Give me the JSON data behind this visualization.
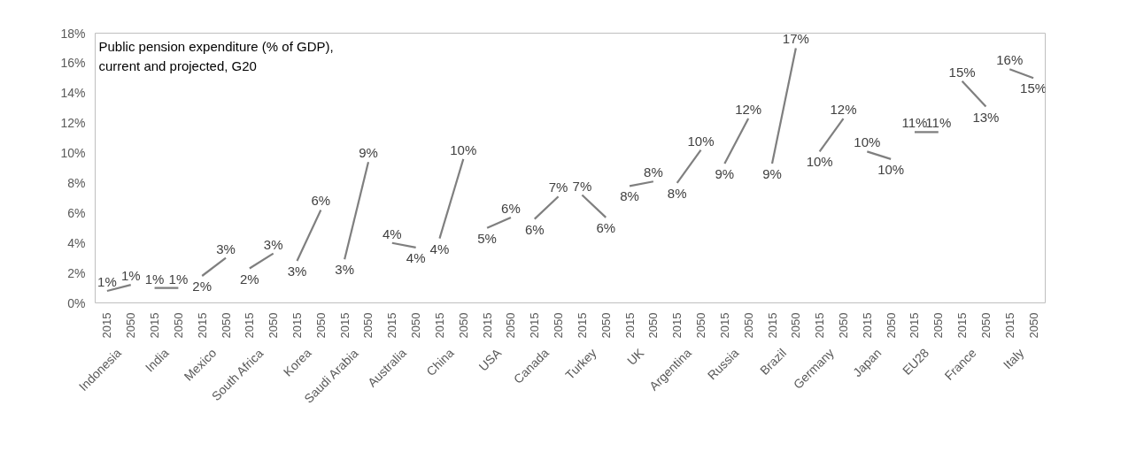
{
  "chart_data": {
    "type": "line",
    "title": "Public pension expenditure (% of GDP),\ncurrent and projected, G20",
    "categories": [
      "2015",
      "2050",
      "2015",
      "2050",
      "2015",
      "2050",
      "2015",
      "2050",
      "2015",
      "2050",
      "2015",
      "2050",
      "2015",
      "2050",
      "2015",
      "2050",
      "2015",
      "2050",
      "2015",
      "2050",
      "2015",
      "2050",
      "2015",
      "2050",
      "2015",
      "2050",
      "2015",
      "2050",
      "2015",
      "2050",
      "2015",
      "2050",
      "2015",
      "2050",
      "2015",
      "2050",
      "2015",
      "2050",
      "2015",
      "2050"
    ],
    "annotations": [
      "Indonesia",
      "India",
      "Mexico",
      "South Africa",
      "Korea",
      "Saudi Arabia",
      "Australia",
      "China",
      "USA",
      "Canada",
      "Turkey",
      "UK",
      "Argentina",
      "Russia",
      "Brazil",
      "Germany",
      "Japan",
      "EU28",
      "France",
      "Italy"
    ],
    "ylim": [
      0,
      18
    ],
    "yticks": [
      {
        "value": 0,
        "label": "0%"
      },
      {
        "value": 2,
        "label": "2%"
      },
      {
        "value": 4,
        "label": "4%"
      },
      {
        "value": 6,
        "label": "6%"
      },
      {
        "value": 8,
        "label": "8%"
      },
      {
        "value": 10,
        "label": "10%"
      },
      {
        "value": 12,
        "label": "12%"
      },
      {
        "value": 14,
        "label": "14%"
      },
      {
        "value": 16,
        "label": "16%"
      },
      {
        "value": 18,
        "label": "18%"
      }
    ],
    "series": [
      {
        "color": "#7f7f7f",
        "values": [
          0.8,
          1.2,
          null,
          null,
          null,
          null,
          null,
          null,
          null,
          null,
          null,
          null,
          null,
          null,
          null,
          null,
          null,
          null,
          null,
          null,
          null,
          null,
          null,
          null,
          null,
          null,
          null,
          null,
          null,
          null,
          null,
          null,
          null,
          null,
          null,
          null,
          null,
          null,
          null,
          null
        ],
        "value_labels": [
          "1%",
          "1%",
          null,
          null,
          null,
          null,
          null,
          null,
          null,
          null,
          null,
          null,
          null,
          null,
          null,
          null,
          null,
          null,
          null,
          null,
          null,
          null,
          null,
          null,
          null,
          null,
          null,
          null,
          null,
          null,
          null,
          null,
          null,
          null,
          null,
          null,
          null,
          null,
          null,
          null
        ]
      },
      {
        "color": "#7f7f7f",
        "values": [
          null,
          null,
          1.0,
          1.0,
          null,
          null,
          null,
          null,
          null,
          null,
          null,
          null,
          null,
          null,
          null,
          null,
          null,
          null,
          null,
          null,
          null,
          null,
          null,
          null,
          null,
          null,
          null,
          null,
          null,
          null,
          null,
          null,
          null,
          null,
          null,
          null,
          null,
          null,
          null,
          null
        ],
        "value_labels": [
          null,
          null,
          "1%",
          "1%",
          null,
          null,
          null,
          null,
          null,
          null,
          null,
          null,
          null,
          null,
          null,
          null,
          null,
          null,
          null,
          null,
          null,
          null,
          null,
          null,
          null,
          null,
          null,
          null,
          null,
          null,
          null,
          null,
          null,
          null,
          null,
          null,
          null,
          null,
          null,
          null
        ]
      },
      {
        "color": "#7f7f7f",
        "values": [
          null,
          null,
          null,
          null,
          1.8,
          3.0,
          null,
          null,
          null,
          null,
          null,
          null,
          null,
          null,
          null,
          null,
          null,
          null,
          null,
          null,
          null,
          null,
          null,
          null,
          null,
          null,
          null,
          null,
          null,
          null,
          null,
          null,
          null,
          null,
          null,
          null,
          null,
          null,
          null,
          null
        ],
        "value_labels": [
          null,
          null,
          null,
          null,
          "2%",
          "3%",
          null,
          null,
          null,
          null,
          null,
          null,
          null,
          null,
          null,
          null,
          null,
          null,
          null,
          null,
          null,
          null,
          null,
          null,
          null,
          null,
          null,
          null,
          null,
          null,
          null,
          null,
          null,
          null,
          null,
          null,
          null,
          null,
          null,
          null
        ]
      },
      {
        "color": "#7f7f7f",
        "values": [
          null,
          null,
          null,
          null,
          null,
          null,
          2.3,
          3.3,
          null,
          null,
          null,
          null,
          null,
          null,
          null,
          null,
          null,
          null,
          null,
          null,
          null,
          null,
          null,
          null,
          null,
          null,
          null,
          null,
          null,
          null,
          null,
          null,
          null,
          null,
          null,
          null,
          null,
          null,
          null,
          null
        ],
        "value_labels": [
          null,
          null,
          null,
          null,
          null,
          null,
          "2%",
          "3%",
          null,
          null,
          null,
          null,
          null,
          null,
          null,
          null,
          null,
          null,
          null,
          null,
          null,
          null,
          null,
          null,
          null,
          null,
          null,
          null,
          null,
          null,
          null,
          null,
          null,
          null,
          null,
          null,
          null,
          null,
          null,
          null
        ]
      },
      {
        "color": "#7f7f7f",
        "values": [
          null,
          null,
          null,
          null,
          null,
          null,
          null,
          null,
          2.8,
          6.2,
          null,
          null,
          null,
          null,
          null,
          null,
          null,
          null,
          null,
          null,
          null,
          null,
          null,
          null,
          null,
          null,
          null,
          null,
          null,
          null,
          null,
          null,
          null,
          null,
          null,
          null,
          null,
          null,
          null,
          null
        ],
        "value_labels": [
          null,
          null,
          null,
          null,
          null,
          null,
          null,
          null,
          "3%",
          "6%",
          null,
          null,
          null,
          null,
          null,
          null,
          null,
          null,
          null,
          null,
          null,
          null,
          null,
          null,
          null,
          null,
          null,
          null,
          null,
          null,
          null,
          null,
          null,
          null,
          null,
          null,
          null,
          null,
          null,
          null
        ]
      },
      {
        "color": "#7f7f7f",
        "values": [
          null,
          null,
          null,
          null,
          null,
          null,
          null,
          null,
          null,
          null,
          2.9,
          9.4,
          null,
          null,
          null,
          null,
          null,
          null,
          null,
          null,
          null,
          null,
          null,
          null,
          null,
          null,
          null,
          null,
          null,
          null,
          null,
          null,
          null,
          null,
          null,
          null,
          null,
          null,
          null,
          null
        ],
        "value_labels": [
          null,
          null,
          null,
          null,
          null,
          null,
          null,
          null,
          null,
          null,
          "3%",
          "9%",
          null,
          null,
          null,
          null,
          null,
          null,
          null,
          null,
          null,
          null,
          null,
          null,
          null,
          null,
          null,
          null,
          null,
          null,
          null,
          null,
          null,
          null,
          null,
          null,
          null,
          null,
          null,
          null
        ]
      },
      {
        "color": "#7f7f7f",
        "values": [
          null,
          null,
          null,
          null,
          null,
          null,
          null,
          null,
          null,
          null,
          null,
          null,
          4.0,
          3.7,
          null,
          null,
          null,
          null,
          null,
          null,
          null,
          null,
          null,
          null,
          null,
          null,
          null,
          null,
          null,
          null,
          null,
          null,
          null,
          null,
          null,
          null,
          null,
          null,
          null,
          null
        ],
        "value_labels": [
          null,
          null,
          null,
          null,
          null,
          null,
          null,
          null,
          null,
          null,
          null,
          null,
          "4%",
          "4%",
          null,
          null,
          null,
          null,
          null,
          null,
          null,
          null,
          null,
          null,
          null,
          null,
          null,
          null,
          null,
          null,
          null,
          null,
          null,
          null,
          null,
          null,
          null,
          null,
          null,
          null
        ]
      },
      {
        "color": "#7f7f7f",
        "values": [
          null,
          null,
          null,
          null,
          null,
          null,
          null,
          null,
          null,
          null,
          null,
          null,
          null,
          null,
          4.3,
          9.6,
          null,
          null,
          null,
          null,
          null,
          null,
          null,
          null,
          null,
          null,
          null,
          null,
          null,
          null,
          null,
          null,
          null,
          null,
          null,
          null,
          null,
          null,
          null,
          null
        ],
        "value_labels": [
          null,
          null,
          null,
          null,
          null,
          null,
          null,
          null,
          null,
          null,
          null,
          null,
          null,
          null,
          "4%",
          "10%",
          null,
          null,
          null,
          null,
          null,
          null,
          null,
          null,
          null,
          null,
          null,
          null,
          null,
          null,
          null,
          null,
          null,
          null,
          null,
          null,
          null,
          null,
          null,
          null
        ]
      },
      {
        "color": "#7f7f7f",
        "values": [
          null,
          null,
          null,
          null,
          null,
          null,
          null,
          null,
          null,
          null,
          null,
          null,
          null,
          null,
          null,
          null,
          5.0,
          5.7,
          null,
          null,
          null,
          null,
          null,
          null,
          null,
          null,
          null,
          null,
          null,
          null,
          null,
          null,
          null,
          null,
          null,
          null,
          null,
          null,
          null,
          null
        ],
        "value_labels": [
          null,
          null,
          null,
          null,
          null,
          null,
          null,
          null,
          null,
          null,
          null,
          null,
          null,
          null,
          null,
          null,
          "5%",
          "6%",
          null,
          null,
          null,
          null,
          null,
          null,
          null,
          null,
          null,
          null,
          null,
          null,
          null,
          null,
          null,
          null,
          null,
          null,
          null,
          null,
          null,
          null
        ]
      },
      {
        "color": "#7f7f7f",
        "values": [
          null,
          null,
          null,
          null,
          null,
          null,
          null,
          null,
          null,
          null,
          null,
          null,
          null,
          null,
          null,
          null,
          null,
          null,
          5.6,
          7.1,
          null,
          null,
          null,
          null,
          null,
          null,
          null,
          null,
          null,
          null,
          null,
          null,
          null,
          null,
          null,
          null,
          null,
          null,
          null,
          null
        ],
        "value_labels": [
          null,
          null,
          null,
          null,
          null,
          null,
          null,
          null,
          null,
          null,
          null,
          null,
          null,
          null,
          null,
          null,
          null,
          null,
          "6%",
          "7%",
          null,
          null,
          null,
          null,
          null,
          null,
          null,
          null,
          null,
          null,
          null,
          null,
          null,
          null,
          null,
          null,
          null,
          null,
          null,
          null
        ]
      },
      {
        "color": "#7f7f7f",
        "values": [
          null,
          null,
          null,
          null,
          null,
          null,
          null,
          null,
          null,
          null,
          null,
          null,
          null,
          null,
          null,
          null,
          null,
          null,
          null,
          null,
          7.2,
          5.7,
          null,
          null,
          null,
          null,
          null,
          null,
          null,
          null,
          null,
          null,
          null,
          null,
          null,
          null,
          null,
          null,
          null,
          null
        ],
        "value_labels": [
          null,
          null,
          null,
          null,
          null,
          null,
          null,
          null,
          null,
          null,
          null,
          null,
          null,
          null,
          null,
          null,
          null,
          null,
          null,
          null,
          "7%",
          "6%",
          null,
          null,
          null,
          null,
          null,
          null,
          null,
          null,
          null,
          null,
          null,
          null,
          null,
          null,
          null,
          null,
          null,
          null
        ]
      },
      {
        "color": "#7f7f7f",
        "values": [
          null,
          null,
          null,
          null,
          null,
          null,
          null,
          null,
          null,
          null,
          null,
          null,
          null,
          null,
          null,
          null,
          null,
          null,
          null,
          null,
          null,
          null,
          7.8,
          8.1,
          null,
          null,
          null,
          null,
          null,
          null,
          null,
          null,
          null,
          null,
          null,
          null,
          null,
          null,
          null,
          null
        ],
        "value_labels": [
          null,
          null,
          null,
          null,
          null,
          null,
          null,
          null,
          null,
          null,
          null,
          null,
          null,
          null,
          null,
          null,
          null,
          null,
          null,
          null,
          null,
          null,
          "8%",
          "8%",
          null,
          null,
          null,
          null,
          null,
          null,
          null,
          null,
          null,
          null,
          null,
          null,
          null,
          null,
          null,
          null
        ]
      },
      {
        "color": "#7f7f7f",
        "values": [
          null,
          null,
          null,
          null,
          null,
          null,
          null,
          null,
          null,
          null,
          null,
          null,
          null,
          null,
          null,
          null,
          null,
          null,
          null,
          null,
          null,
          null,
          null,
          null,
          8.0,
          10.2,
          null,
          null,
          null,
          null,
          null,
          null,
          null,
          null,
          null,
          null,
          null,
          null,
          null,
          null
        ],
        "value_labels": [
          null,
          null,
          null,
          null,
          null,
          null,
          null,
          null,
          null,
          null,
          null,
          null,
          null,
          null,
          null,
          null,
          null,
          null,
          null,
          null,
          null,
          null,
          null,
          null,
          "8%",
          "10%",
          null,
          null,
          null,
          null,
          null,
          null,
          null,
          null,
          null,
          null,
          null,
          null,
          null,
          null
        ]
      },
      {
        "color": "#7f7f7f",
        "values": [
          null,
          null,
          null,
          null,
          null,
          null,
          null,
          null,
          null,
          null,
          null,
          null,
          null,
          null,
          null,
          null,
          null,
          null,
          null,
          null,
          null,
          null,
          null,
          null,
          null,
          null,
          9.3,
          12.3,
          null,
          null,
          null,
          null,
          null,
          null,
          null,
          null,
          null,
          null,
          null,
          null
        ],
        "value_labels": [
          null,
          null,
          null,
          null,
          null,
          null,
          null,
          null,
          null,
          null,
          null,
          null,
          null,
          null,
          null,
          null,
          null,
          null,
          null,
          null,
          null,
          null,
          null,
          null,
          null,
          null,
          "9%",
          "12%",
          null,
          null,
          null,
          null,
          null,
          null,
          null,
          null,
          null,
          null,
          null,
          null
        ]
      },
      {
        "color": "#7f7f7f",
        "values": [
          null,
          null,
          null,
          null,
          null,
          null,
          null,
          null,
          null,
          null,
          null,
          null,
          null,
          null,
          null,
          null,
          null,
          null,
          null,
          null,
          null,
          null,
          null,
          null,
          null,
          null,
          null,
          null,
          9.3,
          17.0,
          null,
          null,
          null,
          null,
          null,
          null,
          null,
          null,
          null,
          null
        ],
        "value_labels": [
          null,
          null,
          null,
          null,
          null,
          null,
          null,
          null,
          null,
          null,
          null,
          null,
          null,
          null,
          null,
          null,
          null,
          null,
          null,
          null,
          null,
          null,
          null,
          null,
          null,
          null,
          null,
          null,
          "9%",
          "17%",
          null,
          null,
          null,
          null,
          null,
          null,
          null,
          null,
          null,
          null
        ]
      },
      {
        "color": "#7f7f7f",
        "values": [
          null,
          null,
          null,
          null,
          null,
          null,
          null,
          null,
          null,
          null,
          null,
          null,
          null,
          null,
          null,
          null,
          null,
          null,
          null,
          null,
          null,
          null,
          null,
          null,
          null,
          null,
          null,
          null,
          null,
          null,
          10.1,
          12.3,
          null,
          null,
          null,
          null,
          null,
          null,
          null,
          null
        ],
        "value_labels": [
          null,
          null,
          null,
          null,
          null,
          null,
          null,
          null,
          null,
          null,
          null,
          null,
          null,
          null,
          null,
          null,
          null,
          null,
          null,
          null,
          null,
          null,
          null,
          null,
          null,
          null,
          null,
          null,
          null,
          null,
          "10%",
          "12%",
          null,
          null,
          null,
          null,
          null,
          null,
          null,
          null
        ]
      },
      {
        "color": "#7f7f7f",
        "values": [
          null,
          null,
          null,
          null,
          null,
          null,
          null,
          null,
          null,
          null,
          null,
          null,
          null,
          null,
          null,
          null,
          null,
          null,
          null,
          null,
          null,
          null,
          null,
          null,
          null,
          null,
          null,
          null,
          null,
          null,
          null,
          null,
          10.1,
          9.6,
          null,
          null,
          null,
          null,
          null,
          null
        ],
        "value_labels": [
          null,
          null,
          null,
          null,
          null,
          null,
          null,
          null,
          null,
          null,
          null,
          null,
          null,
          null,
          null,
          null,
          null,
          null,
          null,
          null,
          null,
          null,
          null,
          null,
          null,
          null,
          null,
          null,
          null,
          null,
          null,
          null,
          "10%",
          "10%",
          null,
          null,
          null,
          null,
          null,
          null
        ]
      },
      {
        "color": "#7f7f7f",
        "values": [
          null,
          null,
          null,
          null,
          null,
          null,
          null,
          null,
          null,
          null,
          null,
          null,
          null,
          null,
          null,
          null,
          null,
          null,
          null,
          null,
          null,
          null,
          null,
          null,
          null,
          null,
          null,
          null,
          null,
          null,
          null,
          null,
          null,
          null,
          11.4,
          11.4,
          null,
          null,
          null,
          null
        ],
        "value_labels": [
          null,
          null,
          null,
          null,
          null,
          null,
          null,
          null,
          null,
          null,
          null,
          null,
          null,
          null,
          null,
          null,
          null,
          null,
          null,
          null,
          null,
          null,
          null,
          null,
          null,
          null,
          null,
          null,
          null,
          null,
          null,
          null,
          null,
          null,
          "11%",
          "11%",
          null,
          null,
          null,
          null
        ]
      },
      {
        "color": "#7f7f7f",
        "values": [
          null,
          null,
          null,
          null,
          null,
          null,
          null,
          null,
          null,
          null,
          null,
          null,
          null,
          null,
          null,
          null,
          null,
          null,
          null,
          null,
          null,
          null,
          null,
          null,
          null,
          null,
          null,
          null,
          null,
          null,
          null,
          null,
          null,
          null,
          null,
          null,
          14.8,
          13.1,
          null,
          null
        ],
        "value_labels": [
          null,
          null,
          null,
          null,
          null,
          null,
          null,
          null,
          null,
          null,
          null,
          null,
          null,
          null,
          null,
          null,
          null,
          null,
          null,
          null,
          null,
          null,
          null,
          null,
          null,
          null,
          null,
          null,
          null,
          null,
          null,
          null,
          null,
          null,
          null,
          null,
          "15%",
          "13%",
          null,
          null
        ]
      },
      {
        "color": "#7f7f7f",
        "values": [
          null,
          null,
          null,
          null,
          null,
          null,
          null,
          null,
          null,
          null,
          null,
          null,
          null,
          null,
          null,
          null,
          null,
          null,
          null,
          null,
          null,
          null,
          null,
          null,
          null,
          null,
          null,
          null,
          null,
          null,
          null,
          null,
          null,
          null,
          null,
          null,
          null,
          null,
          15.6,
          15.0
        ],
        "value_labels": [
          null,
          null,
          null,
          null,
          null,
          null,
          null,
          null,
          null,
          null,
          null,
          null,
          null,
          null,
          null,
          null,
          null,
          null,
          null,
          null,
          null,
          null,
          null,
          null,
          null,
          null,
          null,
          null,
          null,
          null,
          null,
          null,
          null,
          null,
          null,
          null,
          null,
          null,
          "16%",
          "15%"
        ]
      }
    ],
    "marker": "none",
    "line_style": "solid"
  }
}
